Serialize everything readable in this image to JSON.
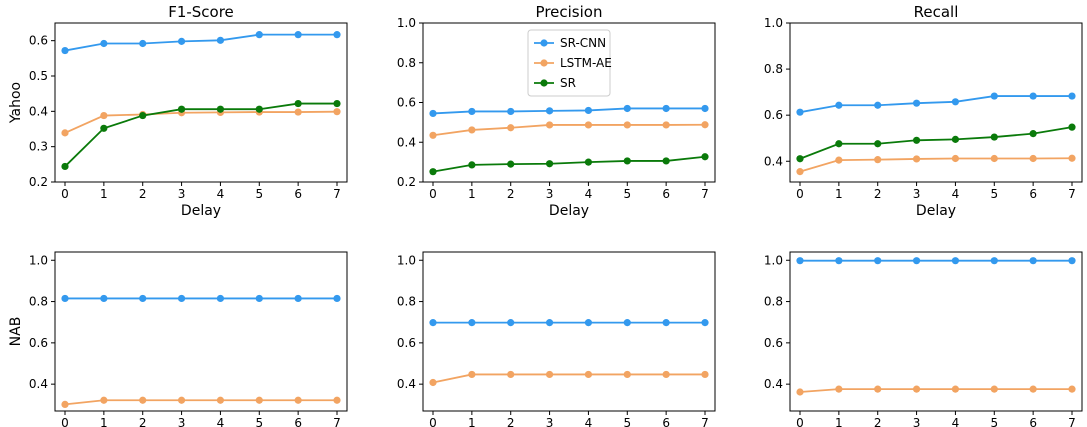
{
  "figure": {
    "row_labels": [
      "Yahoo",
      "NAB"
    ],
    "column_titles": [
      "F1-Score",
      "Precision",
      "Recall"
    ],
    "legend": [
      "SR-CNN",
      "LSTM-AE",
      "SR"
    ],
    "legend_placement": "upper-center of Yahoo Precision panel"
  },
  "colors": {
    "SR-CNN": "#3399ee",
    "LSTM-AE": "#f2a462",
    "SR": "#0a7a0a"
  },
  "chart_data": [
    {
      "type": "line",
      "title": "F1-Score",
      "row": "Yahoo",
      "xlabel": "Delay",
      "ylabel": "Yahoo",
      "x": [
        0,
        1,
        2,
        3,
        4,
        5,
        6,
        7
      ],
      "xlim": [
        0,
        7
      ],
      "ylim": [
        0.2,
        0.65
      ],
      "yticks": [
        0.2,
        0.3,
        0.4,
        0.5,
        0.6
      ],
      "ytick_labels": [
        "0.2",
        "0.3",
        "0.4",
        "0.5",
        "0.6"
      ],
      "series": [
        {
          "name": "SR-CNN",
          "values": [
            0.572,
            0.592,
            0.592,
            0.598,
            0.601,
            0.617,
            0.617,
            0.617
          ]
        },
        {
          "name": "LSTM-AE",
          "values": [
            0.339,
            0.388,
            0.391,
            0.396,
            0.397,
            0.398,
            0.398,
            0.399
          ]
        },
        {
          "name": "SR",
          "values": [
            0.244,
            0.352,
            0.388,
            0.406,
            0.406,
            0.406,
            0.422,
            0.422
          ]
        }
      ]
    },
    {
      "type": "line",
      "title": "Precision",
      "row": "Yahoo",
      "xlabel": "Delay",
      "ylabel": "",
      "x": [
        0,
        1,
        2,
        3,
        4,
        5,
        6,
        7
      ],
      "xlim": [
        0,
        7
      ],
      "ylim": [
        0.2,
        1.0
      ],
      "yticks": [
        0.2,
        0.4,
        0.6,
        0.8,
        1.0
      ],
      "ytick_labels": [
        "0.2",
        "0.4",
        "0.6",
        "0.8",
        "1.0"
      ],
      "series": [
        {
          "name": "SR-CNN",
          "values": [
            0.545,
            0.555,
            0.555,
            0.558,
            0.56,
            0.57,
            0.57,
            0.57
          ]
        },
        {
          "name": "LSTM-AE",
          "values": [
            0.435,
            0.462,
            0.473,
            0.487,
            0.487,
            0.487,
            0.487,
            0.488
          ]
        },
        {
          "name": "SR",
          "values": [
            0.252,
            0.286,
            0.29,
            0.292,
            0.3,
            0.306,
            0.306,
            0.327
          ]
        }
      ]
    },
    {
      "type": "line",
      "title": "Recall",
      "row": "Yahoo",
      "xlabel": "Delay",
      "ylabel": "",
      "x": [
        0,
        1,
        2,
        3,
        4,
        5,
        6,
        7
      ],
      "xlim": [
        0,
        7
      ],
      "ylim": [
        0.31,
        1.0
      ],
      "yticks": [
        0.4,
        0.6,
        0.8,
        1.0
      ],
      "ytick_labels": [
        "0.4",
        "0.6",
        "0.8",
        "1.0"
      ],
      "series": [
        {
          "name": "SR-CNN",
          "values": [
            0.613,
            0.643,
            0.643,
            0.652,
            0.658,
            0.683,
            0.683,
            0.683
          ]
        },
        {
          "name": "LSTM-AE",
          "values": [
            0.355,
            0.405,
            0.407,
            0.41,
            0.412,
            0.412,
            0.412,
            0.413
          ]
        },
        {
          "name": "SR",
          "values": [
            0.411,
            0.476,
            0.476,
            0.491,
            0.495,
            0.505,
            0.52,
            0.548
          ]
        }
      ]
    },
    {
      "type": "line",
      "title": "",
      "row": "NAB",
      "xlabel": "Delay",
      "ylabel": "NAB",
      "x": [
        0,
        1,
        2,
        3,
        4,
        5,
        6,
        7
      ],
      "xlim": [
        0,
        7
      ],
      "ylim": [
        0.27,
        1.04
      ],
      "yticks": [
        0.4,
        0.6,
        0.8,
        1.0
      ],
      "ytick_labels": [
        "0.4",
        "0.6",
        "0.8",
        "1.0"
      ],
      "series": [
        {
          "name": "SR-CNN",
          "values": [
            0.815,
            0.815,
            0.815,
            0.815,
            0.815,
            0.815,
            0.815,
            0.815
          ]
        },
        {
          "name": "LSTM-AE",
          "values": [
            0.302,
            0.322,
            0.322,
            0.322,
            0.322,
            0.322,
            0.322,
            0.322
          ]
        }
      ]
    },
    {
      "type": "line",
      "title": "",
      "row": "NAB",
      "xlabel": "Delay",
      "ylabel": "",
      "x": [
        0,
        1,
        2,
        3,
        4,
        5,
        6,
        7
      ],
      "xlim": [
        0,
        7
      ],
      "ylim": [
        0.27,
        1.04
      ],
      "yticks": [
        0.4,
        0.6,
        0.8,
        1.0
      ],
      "ytick_labels": [
        "0.4",
        "0.6",
        "0.8",
        "1.0"
      ],
      "series": [
        {
          "name": "SR-CNN",
          "values": [
            0.698,
            0.698,
            0.698,
            0.698,
            0.698,
            0.698,
            0.698,
            0.698
          ]
        },
        {
          "name": "LSTM-AE",
          "values": [
            0.408,
            0.447,
            0.447,
            0.447,
            0.447,
            0.447,
            0.447,
            0.447
          ]
        }
      ]
    },
    {
      "type": "line",
      "title": "",
      "row": "NAB",
      "xlabel": "Delay",
      "ylabel": "",
      "x": [
        0,
        1,
        2,
        3,
        4,
        5,
        6,
        7
      ],
      "xlim": [
        0,
        7
      ],
      "ylim": [
        0.27,
        1.04
      ],
      "yticks": [
        0.4,
        0.6,
        0.8,
        1.0
      ],
      "ytick_labels": [
        "0.4",
        "0.6",
        "0.8",
        "1.0"
      ],
      "series": [
        {
          "name": "SR-CNN",
          "values": [
            0.998,
            0.998,
            0.998,
            0.998,
            0.998,
            0.998,
            0.998,
            0.998
          ]
        },
        {
          "name": "LSTM-AE",
          "values": [
            0.362,
            0.376,
            0.376,
            0.376,
            0.376,
            0.376,
            0.376,
            0.376
          ]
        }
      ]
    }
  ]
}
